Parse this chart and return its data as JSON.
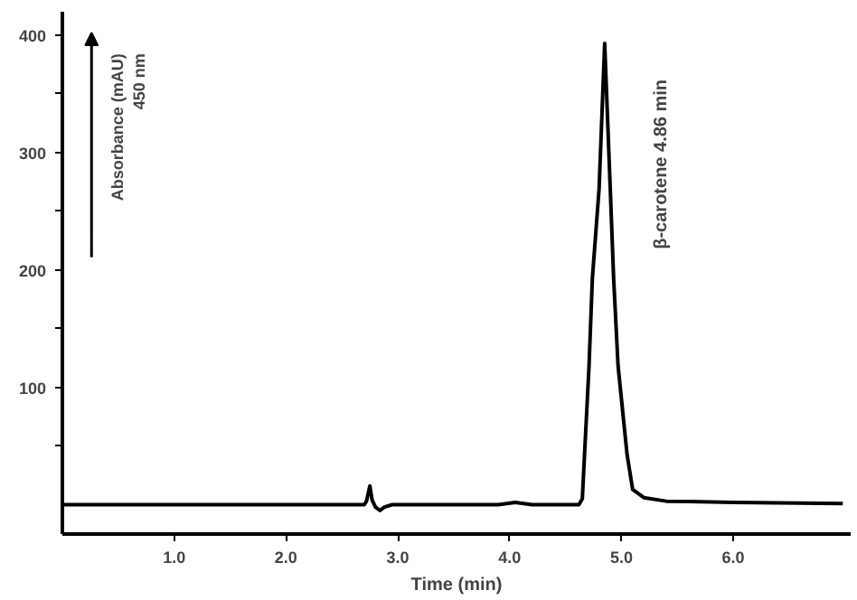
{
  "chart_data": {
    "type": "line",
    "xlabel": "Time (min)",
    "annotations": [
      "Absorbance (mAU)\n450 nm",
      "β-carotene  4.86 min"
    ],
    "x": [
      0.0,
      2.7,
      2.72,
      2.75,
      2.77,
      2.8,
      2.84,
      2.88,
      2.95,
      3.9,
      4.05,
      4.2,
      4.62,
      4.65,
      4.67,
      4.71,
      4.74,
      4.8,
      4.85,
      4.9,
      4.93,
      4.97,
      5.05,
      5.1,
      5.2,
      5.4,
      6.0,
      6.98
    ],
    "series": [
      {
        "color": "#000000",
        "values": [
          0,
          0,
          3,
          16,
          4,
          -2,
          -5,
          -2,
          0,
          0,
          2,
          0,
          0,
          5,
          43,
          118,
          193,
          269,
          393,
          269,
          193,
          118,
          43,
          13,
          6,
          3,
          2,
          1
        ]
      }
    ],
    "xlim": [
      0,
      7.05
    ],
    "ylim": [
      -25,
      420
    ],
    "xticks": [
      {
        "value": 1,
        "label": "1.0"
      },
      {
        "value": 2,
        "label": "2.0"
      },
      {
        "value": 3,
        "label": "3.0"
      },
      {
        "value": 4,
        "label": "4.0"
      },
      {
        "value": 5,
        "label": "5.0"
      },
      {
        "value": 6,
        "label": "6.0"
      }
    ],
    "yticks": [
      {
        "value": 50,
        "label": null
      },
      100,
      {
        "value": 150,
        "label": null
      },
      200,
      {
        "value": 250,
        "label": null
      },
      300,
      {
        "value": 350,
        "label": null
      },
      400
    ],
    "grid": false,
    "marker": "none",
    "line_style": "solid"
  }
}
